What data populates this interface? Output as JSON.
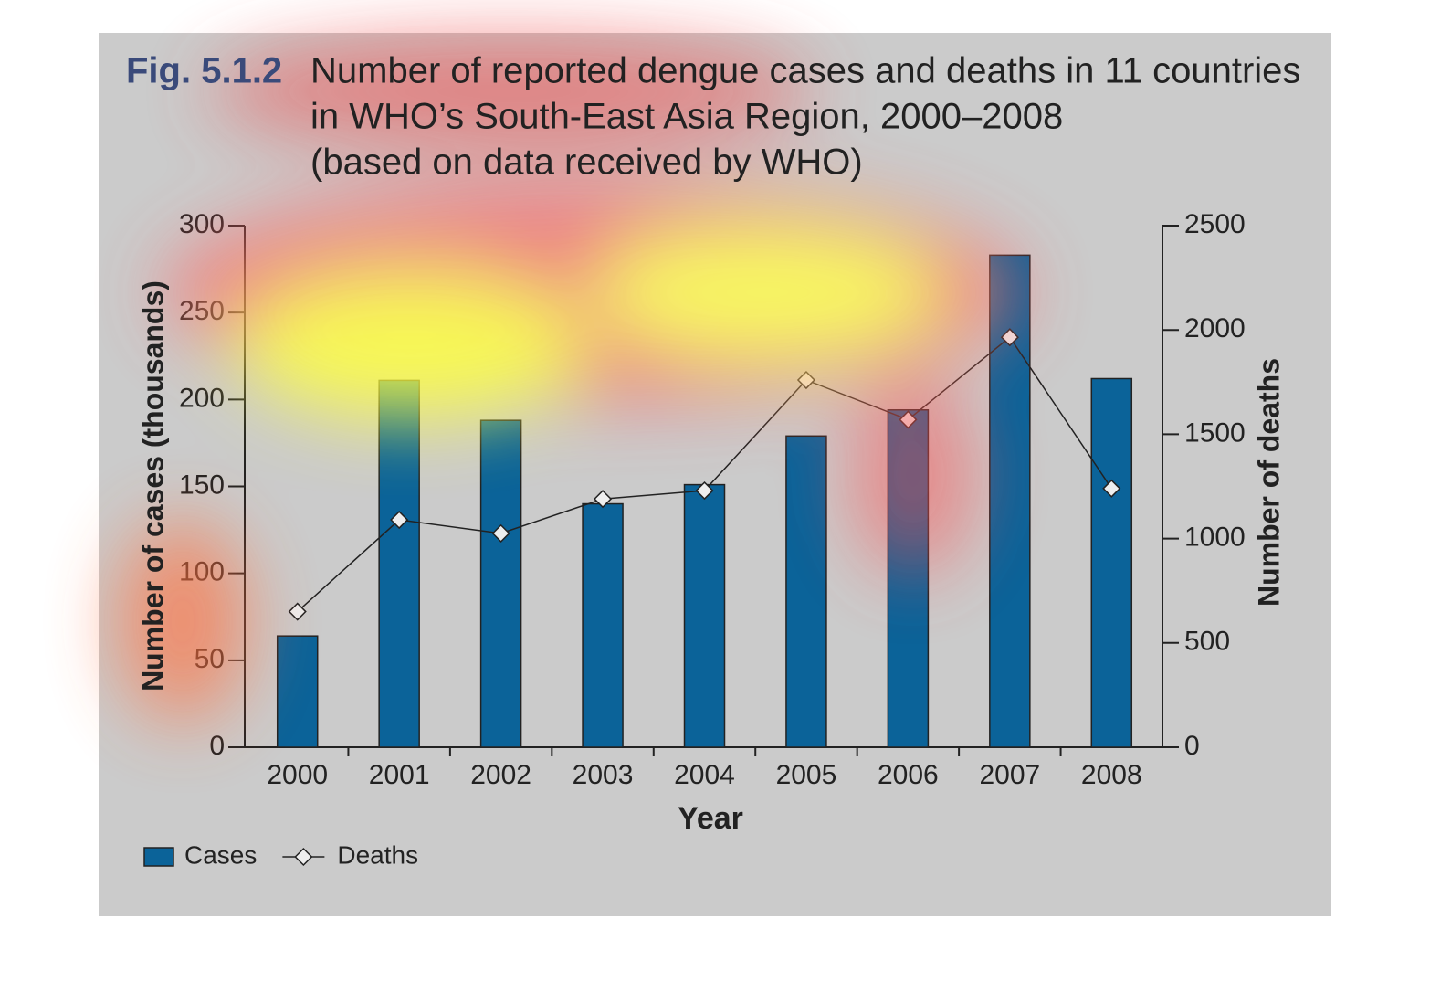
{
  "chart_data": {
    "type": "bar",
    "figure_label": "Fig. 5.1.2",
    "title": [
      "Number of reported dengue cases and deaths in 11 countries",
      "in WHO’s South-East Asia Region, 2000–2008",
      "(based on data received by WHO)"
    ],
    "xlabel": "Year",
    "ylabel": "Number of cases (thousands)",
    "y2label": "Number of deaths",
    "categories": [
      "2000",
      "2001",
      "2002",
      "2003",
      "2004",
      "2005",
      "2006",
      "2007",
      "2008"
    ],
    "series": [
      {
        "name": "Cases",
        "type": "bar",
        "color": "#0b6399",
        "values": [
          64,
          211,
          188,
          140,
          151,
          179,
          194,
          283,
          212
        ]
      },
      {
        "name": "Deaths",
        "type": "line",
        "axis": "y2",
        "color": "#222222",
        "values": [
          650,
          1090,
          1025,
          1190,
          1230,
          1760,
          1570,
          1965,
          1240
        ]
      }
    ],
    "ylim": [
      0,
      300
    ],
    "yticks": [
      0,
      50,
      100,
      150,
      200,
      250,
      300
    ],
    "y2lim": [
      0,
      2500
    ],
    "y2ticks": [
      0,
      500,
      1000,
      1500,
      2000,
      2500
    ],
    "legend": "bottom-left"
  }
}
